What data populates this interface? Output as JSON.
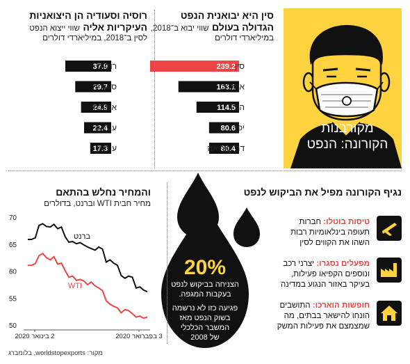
{
  "colors": {
    "accent": "#ee4444",
    "black": "#111111",
    "yellow": "#ffd23f",
    "panel_bg": "#ffd23f"
  },
  "icons": [
    "covid-mask-face-illustration",
    "airplane-icon",
    "factory-icon",
    "house-icon",
    "oil-drop-icon"
  ],
  "header": {
    "line1": "מקורבנות",
    "line2": "הקורונה: הנפט"
  },
  "china": {
    "title1": "סין היא יבואנית הנפט",
    "title2": "הגדולה בעולם",
    "sub_inline": "שווי יבוא ב־2018,",
    "sub2": "במיליארדי דולרים"
  },
  "russia": {
    "title1": "רוסיה וסעודיה הן היצואניות",
    "title2": "העיקריות אליה",
    "sub_inline": "שווי ייצוא הנפט",
    "sub2": "לסין ב־2018, במיליארדי דולרים"
  },
  "line_section": {
    "title": "והמחיר נחלש בהתאם",
    "sub": "מחיר חבית WTI וברנט, בדולרים"
  },
  "right_section": {
    "title": "נגיף הקורונה מפיל את הביקוש לנפט",
    "items": [
      {
        "head": "טיסות בוטלו:",
        "rest1": " חברות",
        "line2": "תעופה בינלאומיות רבות",
        "line3": "השהו את הקווים לסין"
      },
      {
        "head": "מפעלים נסגרו:",
        "rest1": " יצרני רכב",
        "line2": "ונוספים הקפיאו פעילות,",
        "line3": "בעיקר באזור הנגוע במדינה"
      },
      {
        "head": "חופשות הוארכו:",
        "rest1": " התושבים",
        "line2": "הונחו להישאר בבתים, מה",
        "line3": "שמצמצם את פעילות המשק"
      }
    ]
  },
  "drop": {
    "percent": "20%",
    "l1": "הצניחה בביקוש לנפט",
    "l2": "בעקבות המגפה.",
    "l3": "פגיעה כזו לא נרשמה",
    "l4": "בשוק הנפט מאז",
    "l5": "המשבר הכלכלי",
    "l6": "של 2008"
  },
  "source": "מקור: worldstopexports, בלומברג",
  "chart_data": [
    {
      "type": "bar",
      "orientation": "horizontal",
      "categories": [
        "סין",
        "ארה\"ב",
        "הודו",
        "יפן",
        "דר' קוריאה"
      ],
      "values": [
        239.2,
        163.1,
        114.5,
        80.6,
        80.4
      ],
      "value_labels": [
        "239.2",
        "163.1",
        "114.5",
        "80.6",
        "80.4"
      ],
      "highlight_index": 0,
      "xlim": [
        0,
        239.2
      ]
    },
    {
      "type": "bar",
      "orientation": "horizontal",
      "categories": [
        "רוסיה",
        "סעודיה",
        "אנגולה",
        "עיראק",
        "עומאן"
      ],
      "values": [
        37.9,
        29.7,
        24.9,
        22.4,
        17.3
      ],
      "value_labels": [
        "37.9",
        "29.7",
        "24.9",
        "22.4",
        "17.3"
      ],
      "xlim": [
        0,
        37.9
      ]
    },
    {
      "type": "line",
      "ylim": [
        50,
        70
      ],
      "yticks": [
        50,
        55,
        60,
        65,
        70
      ],
      "yticks_labels": [
        "50",
        "55",
        "60",
        "65",
        "70"
      ],
      "xticks_labels": [
        "2 בינואר 2020",
        "3 בפברואר 2020"
      ],
      "grid": false,
      "series": [
        {
          "name": "ברנט",
          "color": "#111111",
          "values": [
            66.0,
            66.0,
            66.3,
            68.6,
            68.9,
            68.4,
            68.3,
            68.8,
            68.0,
            68.3,
            66.5,
            65.5,
            65.6,
            65.2,
            65.4,
            65.0,
            64.6,
            64.3,
            64.0,
            64.6,
            64.2,
            61.8,
            62.2,
            61.6,
            61.2,
            59.3,
            58.8,
            59.2,
            59.0,
            57.0,
            57.2,
            56.6,
            56.3
          ]
        },
        {
          "name": "WTI",
          "color": "#ee4444",
          "values": [
            61.2,
            61.2,
            61.5,
            63.0,
            63.4,
            62.6,
            62.2,
            62.8,
            61.4,
            61.6,
            60.2,
            59.0,
            59.2,
            58.4,
            58.6,
            58.3,
            57.6,
            58.1,
            57.4,
            57.0,
            56.5,
            54.6,
            54.0,
            53.6,
            53.3,
            52.4,
            53.0,
            52.8,
            52.2,
            51.6,
            51.8,
            51.4,
            51.6
          ]
        }
      ]
    }
  ]
}
